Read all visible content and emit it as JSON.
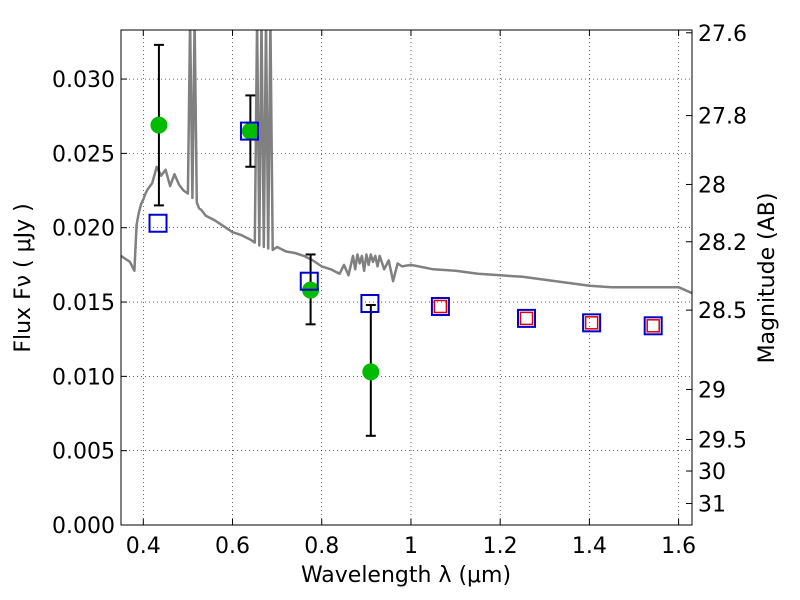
{
  "chart_data": {
    "type": "scatter",
    "title": "",
    "xlabel": "Wavelength  λ (μm)",
    "ylabel": "Flux  Fν  ( μJy )",
    "y2label": "Magnitude (AB)",
    "xlim": [
      0.35,
      1.63
    ],
    "ylim": [
      0.0,
      0.0333
    ],
    "grid": true,
    "xticks": [
      0.4,
      0.6,
      0.8,
      1.0,
      1.2,
      1.4,
      1.6
    ],
    "xtick_labels": [
      "0.4",
      "0.6",
      "0.8",
      "1",
      "1.2",
      "1.4",
      "1.6"
    ],
    "yticks": [
      0.0,
      0.005,
      0.01,
      0.015,
      0.02,
      0.025,
      0.03
    ],
    "ytick_labels": [
      "0.000",
      "0.005",
      "0.010",
      "0.015",
      "0.020",
      "0.025",
      "0.030"
    ],
    "y2ticks": [
      {
        "label": "27.6",
        "mag": 27.6
      },
      {
        "label": "27.8",
        "mag": 27.8
      },
      {
        "label": "28",
        "mag": 28.0
      },
      {
        "label": "28.2",
        "mag": 28.2
      },
      {
        "label": "28.5",
        "mag": 28.5
      },
      {
        "label": "29",
        "mag": 29.0
      },
      {
        "label": "29.5",
        "mag": 29.5
      },
      {
        "label": "30",
        "mag": 30.0
      },
      {
        "label": "31",
        "mag": 31.0
      }
    ],
    "series": [
      {
        "kind": "line",
        "color": "#808080",
        "x": [
          0.35,
          0.37,
          0.38,
          0.385,
          0.39,
          0.395,
          0.4,
          0.405,
          0.41,
          0.415,
          0.42,
          0.43,
          0.44,
          0.45,
          0.46,
          0.47,
          0.48,
          0.49,
          0.5,
          0.505,
          0.51,
          0.515,
          0.52,
          0.525,
          0.53,
          0.54,
          0.56,
          0.58,
          0.6,
          0.62,
          0.64,
          0.65,
          0.655,
          0.66,
          0.665,
          0.67,
          0.675,
          0.68,
          0.685,
          0.69,
          0.7,
          0.72,
          0.74,
          0.76,
          0.78,
          0.8,
          0.82,
          0.84,
          0.85,
          0.86,
          0.87,
          0.875,
          0.88,
          0.885,
          0.89,
          0.895,
          0.9,
          0.905,
          0.91,
          0.915,
          0.92,
          0.925,
          0.93,
          0.94,
          0.95,
          0.96,
          0.97,
          0.98,
          1.0,
          1.05,
          1.1,
          1.15,
          1.2,
          1.25,
          1.3,
          1.35,
          1.4,
          1.45,
          1.5,
          1.55,
          1.6,
          1.63
        ],
        "y": [
          0.0181,
          0.0177,
          0.0171,
          0.0202,
          0.021,
          0.0216,
          0.0219,
          0.0223,
          0.0226,
          0.0228,
          0.023,
          0.0241,
          0.0235,
          0.0239,
          0.0228,
          0.0236,
          0.0229,
          0.0225,
          0.0223,
          0.034,
          0.022,
          0.034,
          0.0217,
          0.0213,
          0.0212,
          0.0208,
          0.0205,
          0.0201,
          0.0197,
          0.0195,
          0.0192,
          0.019,
          0.034,
          0.0188,
          0.034,
          0.0187,
          0.034,
          0.0186,
          0.034,
          0.0185,
          0.0187,
          0.0184,
          0.0183,
          0.0181,
          0.0178,
          0.0174,
          0.0172,
          0.0169,
          0.0175,
          0.0168,
          0.0181,
          0.0172,
          0.0182,
          0.0176,
          0.0181,
          0.0171,
          0.0182,
          0.0175,
          0.0182,
          0.0177,
          0.0181,
          0.0174,
          0.0181,
          0.0172,
          0.0178,
          0.0164,
          0.0176,
          0.0174,
          0.0175,
          0.0172,
          0.0171,
          0.0169,
          0.0168,
          0.0167,
          0.0165,
          0.0163,
          0.0161,
          0.016,
          0.016,
          0.016,
          0.016,
          0.0156
        ]
      },
      {
        "kind": "points",
        "marker": "circle",
        "color": "#00bb00",
        "x": [
          0.435,
          0.64,
          0.775,
          0.91
        ],
        "y": [
          0.0269,
          0.0265,
          0.0158,
          0.0103
        ],
        "yerr_low": [
          0.0215,
          0.0241,
          0.0135,
          0.006
        ],
        "yerr_high": [
          0.0323,
          0.0289,
          0.0182,
          0.0148
        ]
      },
      {
        "kind": "points",
        "marker": "square",
        "color": "#0000cc",
        "x": [
          0.433,
          0.638,
          0.772,
          0.908,
          1.066,
          1.259,
          1.405,
          1.543
        ],
        "y": [
          0.0203,
          0.0265,
          0.0164,
          0.0149,
          0.0147,
          0.0139,
          0.0136,
          0.0134
        ]
      },
      {
        "kind": "points",
        "marker": "square-small",
        "color": "#dd0000",
        "x": [
          1.066,
          1.259,
          1.405,
          1.543
        ],
        "y": [
          0.0147,
          0.0139,
          0.0136,
          0.0134
        ]
      }
    ]
  }
}
